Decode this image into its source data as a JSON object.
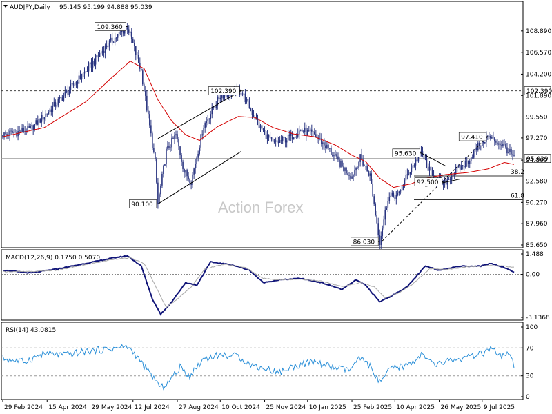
{
  "header": {
    "symbol": "AUDJPY,Daily",
    "ohlc": "95.145 95.199 94.888 95.039"
  },
  "watermark": "Action Forex",
  "colors": {
    "price": "#2a3580",
    "ma": "#d40000",
    "macd_line": "#101478",
    "macd_signal": "#a8a8a8",
    "rsi": "#2a8fd8",
    "line_annot": "#000000",
    "panel_border": "#000000"
  },
  "chart_data": [
    {
      "type": "line",
      "panel": "price",
      "title": "AUDJPY,Daily",
      "ylim": [
        85.65,
        110.9
      ],
      "y_ticks": [
        "108.890",
        "106.570",
        "104.200",
        "101.890",
        "99.550",
        "97.270",
        "94.860",
        "92.580",
        "90.270",
        "87.960",
        "85.650"
      ],
      "y_tick_values": [
        108.89,
        106.57,
        104.2,
        101.89,
        99.55,
        97.27,
        94.86,
        92.58,
        90.27,
        87.96,
        85.65
      ],
      "x_ticks": [
        "29 Feb 2024",
        "15 Apr 2024",
        "29 May 2024",
        "12 Jul 2024",
        "27 Aug 2024",
        "10 Oct 2024",
        "25 Nov 2024",
        "10 Jan 2025",
        "25 Feb 2025",
        "10 Apr 2025",
        "26 May 2025",
        "9 Jul 2025"
      ],
      "x_tick_bars": [
        0,
        32,
        63,
        94,
        126,
        157,
        189,
        220,
        252,
        283,
        315,
        346
      ],
      "n_bars": 370,
      "price_keypoints": [
        [
          0,
          97.6
        ],
        [
          20,
          98.2
        ],
        [
          40,
          101.2
        ],
        [
          60,
          104.5
        ],
        [
          75,
          107.3
        ],
        [
          90,
          109.36
        ],
        [
          100,
          104.5
        ],
        [
          105,
          99.5
        ],
        [
          110,
          94.6
        ],
        [
          112,
          90.1
        ],
        [
          118,
          95.8
        ],
        [
          125,
          97.6
        ],
        [
          131,
          93.6
        ],
        [
          136,
          92.6
        ],
        [
          145,
          98.6
        ],
        [
          157,
          101.9
        ],
        [
          172,
          102.39
        ],
        [
          185,
          98.6
        ],
        [
          195,
          96.6
        ],
        [
          205,
          97.2
        ],
        [
          215,
          98.1
        ],
        [
          225,
          97.6
        ],
        [
          235,
          96.1
        ],
        [
          245,
          94.1
        ],
        [
          252,
          93.1
        ],
        [
          258,
          95.1
        ],
        [
          265,
          93.2
        ],
        [
          272,
          86.03
        ],
        [
          278,
          90.8
        ],
        [
          286,
          91.1
        ],
        [
          293,
          93.6
        ],
        [
          302,
          95.63
        ],
        [
          310,
          93.1
        ],
        [
          318,
          92.2
        ],
        [
          326,
          93.6
        ],
        [
          335,
          94.6
        ],
        [
          344,
          96.6
        ],
        [
          350,
          97.41
        ],
        [
          356,
          96.9
        ],
        [
          362,
          96.4
        ],
        [
          369,
          95.039
        ]
      ],
      "ma_keypoints": [
        [
          0,
          97.4
        ],
        [
          30,
          98.4
        ],
        [
          60,
          101.2
        ],
        [
          80,
          104.0
        ],
        [
          92,
          105.6
        ],
        [
          102,
          104.8
        ],
        [
          112,
          101.4
        ],
        [
          122,
          99.1
        ],
        [
          132,
          97.6
        ],
        [
          142,
          97.0
        ],
        [
          155,
          98.5
        ],
        [
          170,
          99.6
        ],
        [
          182,
          99.5
        ],
        [
          195,
          98.4
        ],
        [
          210,
          97.7
        ],
        [
          225,
          97.4
        ],
        [
          240,
          96.5
        ],
        [
          252,
          95.4
        ],
        [
          262,
          94.7
        ],
        [
          272,
          92.9
        ],
        [
          282,
          91.9
        ],
        [
          295,
          92.3
        ],
        [
          305,
          92.9
        ],
        [
          320,
          93.3
        ],
        [
          335,
          93.5
        ],
        [
          350,
          93.9
        ],
        [
          362,
          94.6
        ],
        [
          369,
          94.4
        ]
      ],
      "hlines": [
        {
          "value": 102.39,
          "label": "102.390",
          "style": "dashed"
        },
        {
          "value": 95.039,
          "label": "95.039",
          "style": "solid-grey"
        }
      ],
      "fib_levels": [
        {
          "value": 93.14,
          "label": "38.2"
        },
        {
          "value": 90.56,
          "label": "61.8"
        }
      ],
      "callouts": [
        {
          "label": "109.360",
          "bar": 90,
          "value": 109.36,
          "side": "left"
        },
        {
          "label": "102.390",
          "bar": 172,
          "value": 102.39,
          "side": "left"
        },
        {
          "label": "90.100",
          "bar": 112,
          "value": 90.1,
          "side": "left"
        },
        {
          "label": "86.030",
          "bar": 272,
          "value": 86.03,
          "side": "left"
        },
        {
          "label": "95.630",
          "bar": 302,
          "value": 95.63,
          "side": "left"
        },
        {
          "label": "92.500",
          "bar": 318,
          "value": 92.5,
          "side": "left"
        },
        {
          "label": "97.410",
          "bar": 350,
          "value": 97.41,
          "side": "left"
        }
      ],
      "trendlines": [
        {
          "from": [
            112,
            90.1
          ],
          "to": [
            172,
            95.8
          ]
        },
        {
          "from": [
            112,
            97.2
          ],
          "to": [
            172,
            102.39
          ]
        },
        {
          "from": [
            302,
            95.63
          ],
          "to": [
            320,
            94.2
          ]
        },
        {
          "from": [
            305,
            92.0
          ],
          "to": [
            330,
            92.8
          ]
        },
        {
          "from": [
            274,
            86.1
          ],
          "to": [
            350,
            97.41
          ],
          "dashed": true
        }
      ]
    },
    {
      "type": "line",
      "panel": "macd",
      "title": "MACD(12,26,9) 0.1750 0.5070",
      "ylim": [
        -3.1368,
        1.488
      ],
      "y_ticks": [
        "1.488",
        "0.00",
        "-3.1368"
      ],
      "y_tick_values": [
        1.488,
        0.0,
        -3.1368
      ],
      "series": [
        {
          "name": "MACD",
          "keypoints": [
            [
              0,
              0.3
            ],
            [
              20,
              0.1
            ],
            [
              40,
              0.4
            ],
            [
              60,
              0.8
            ],
            [
              80,
              1.2
            ],
            [
              90,
              1.35
            ],
            [
              100,
              0.6
            ],
            [
              108,
              -1.8
            ],
            [
              114,
              -2.9
            ],
            [
              122,
              -2.0
            ],
            [
              132,
              -0.6
            ],
            [
              140,
              -0.8
            ],
            [
              150,
              0.9
            ],
            [
              165,
              0.7
            ],
            [
              178,
              0.3
            ],
            [
              188,
              -0.6
            ],
            [
              200,
              -0.4
            ],
            [
              215,
              -0.3
            ],
            [
              230,
              -0.6
            ],
            [
              245,
              -1.1
            ],
            [
              255,
              -0.4
            ],
            [
              262,
              -0.8
            ],
            [
              272,
              -2.0
            ],
            [
              280,
              -1.6
            ],
            [
              292,
              -0.9
            ],
            [
              305,
              0.6
            ],
            [
              315,
              0.3
            ],
            [
              330,
              0.6
            ],
            [
              345,
              0.6
            ],
            [
              352,
              0.8
            ],
            [
              362,
              0.5
            ],
            [
              369,
              0.175
            ]
          ]
        },
        {
          "name": "Signal",
          "keypoints": [
            [
              0,
              0.2
            ],
            [
              20,
              0.2
            ],
            [
              40,
              0.3
            ],
            [
              60,
              0.7
            ],
            [
              80,
              1.1
            ],
            [
              92,
              1.2
            ],
            [
              102,
              0.8
            ],
            [
              110,
              -0.8
            ],
            [
              118,
              -2.4
            ],
            [
              126,
              -1.8
            ],
            [
              136,
              -0.9
            ],
            [
              146,
              0.4
            ],
            [
              160,
              0.75
            ],
            [
              175,
              0.5
            ],
            [
              188,
              -0.3
            ],
            [
              200,
              -0.4
            ],
            [
              215,
              -0.35
            ],
            [
              230,
              -0.5
            ],
            [
              245,
              -0.9
            ],
            [
              258,
              -0.6
            ],
            [
              268,
              -0.9
            ],
            [
              276,
              -1.7
            ],
            [
              285,
              -1.4
            ],
            [
              296,
              -0.7
            ],
            [
              308,
              0.4
            ],
            [
              320,
              0.35
            ],
            [
              335,
              0.55
            ],
            [
              350,
              0.65
            ],
            [
              362,
              0.6
            ],
            [
              369,
              0.507
            ]
          ]
        }
      ]
    },
    {
      "type": "line",
      "panel": "rsi",
      "title": "RSI(14) 43.0815",
      "ylim": [
        0,
        100
      ],
      "y_ticks": [
        "100",
        "70",
        "30",
        "0"
      ],
      "y_tick_values": [
        100,
        70,
        30,
        0
      ],
      "series": [
        {
          "name": "RSI",
          "keypoints": [
            [
              0,
              55
            ],
            [
              15,
              50
            ],
            [
              30,
              62
            ],
            [
              45,
              60
            ],
            [
              60,
              65
            ],
            [
              75,
              68
            ],
            [
              90,
              72
            ],
            [
              96,
              60
            ],
            [
              104,
              38
            ],
            [
              110,
              25
            ],
            [
              114,
              12
            ],
            [
              120,
              22
            ],
            [
              128,
              42
            ],
            [
              135,
              30
            ],
            [
              145,
              55
            ],
            [
              157,
              60
            ],
            [
              170,
              58
            ],
            [
              180,
              45
            ],
            [
              190,
              40
            ],
            [
              200,
              35
            ],
            [
              212,
              45
            ],
            [
              225,
              50
            ],
            [
              238,
              42
            ],
            [
              250,
              38
            ],
            [
              258,
              55
            ],
            [
              266,
              42
            ],
            [
              272,
              20
            ],
            [
              280,
              40
            ],
            [
              292,
              45
            ],
            [
              302,
              60
            ],
            [
              312,
              45
            ],
            [
              322,
              52
            ],
            [
              334,
              55
            ],
            [
              346,
              62
            ],
            [
              352,
              68
            ],
            [
              360,
              58
            ],
            [
              366,
              60
            ],
            [
              369,
              43.08
            ]
          ]
        }
      ]
    }
  ]
}
